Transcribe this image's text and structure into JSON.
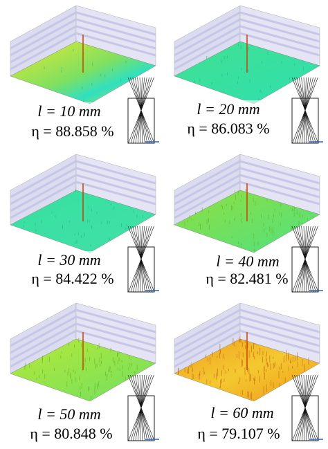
{
  "panels": [
    {
      "length": "l = 10 mm",
      "efficiency": "η = 88.858 %"
    },
    {
      "length": "l = 20 mm",
      "efficiency": "η = 86.083 %"
    },
    {
      "length": "l = 30 mm",
      "efficiency": "η = 84.422 %"
    },
    {
      "length": "l = 40 mm",
      "efficiency": "η = 82.481 %"
    },
    {
      "length": "l = 50 mm",
      "efficiency": "η = 80.848 %"
    },
    {
      "length": "l = 60 mm",
      "efficiency": "η = 79.107 %"
    }
  ]
}
